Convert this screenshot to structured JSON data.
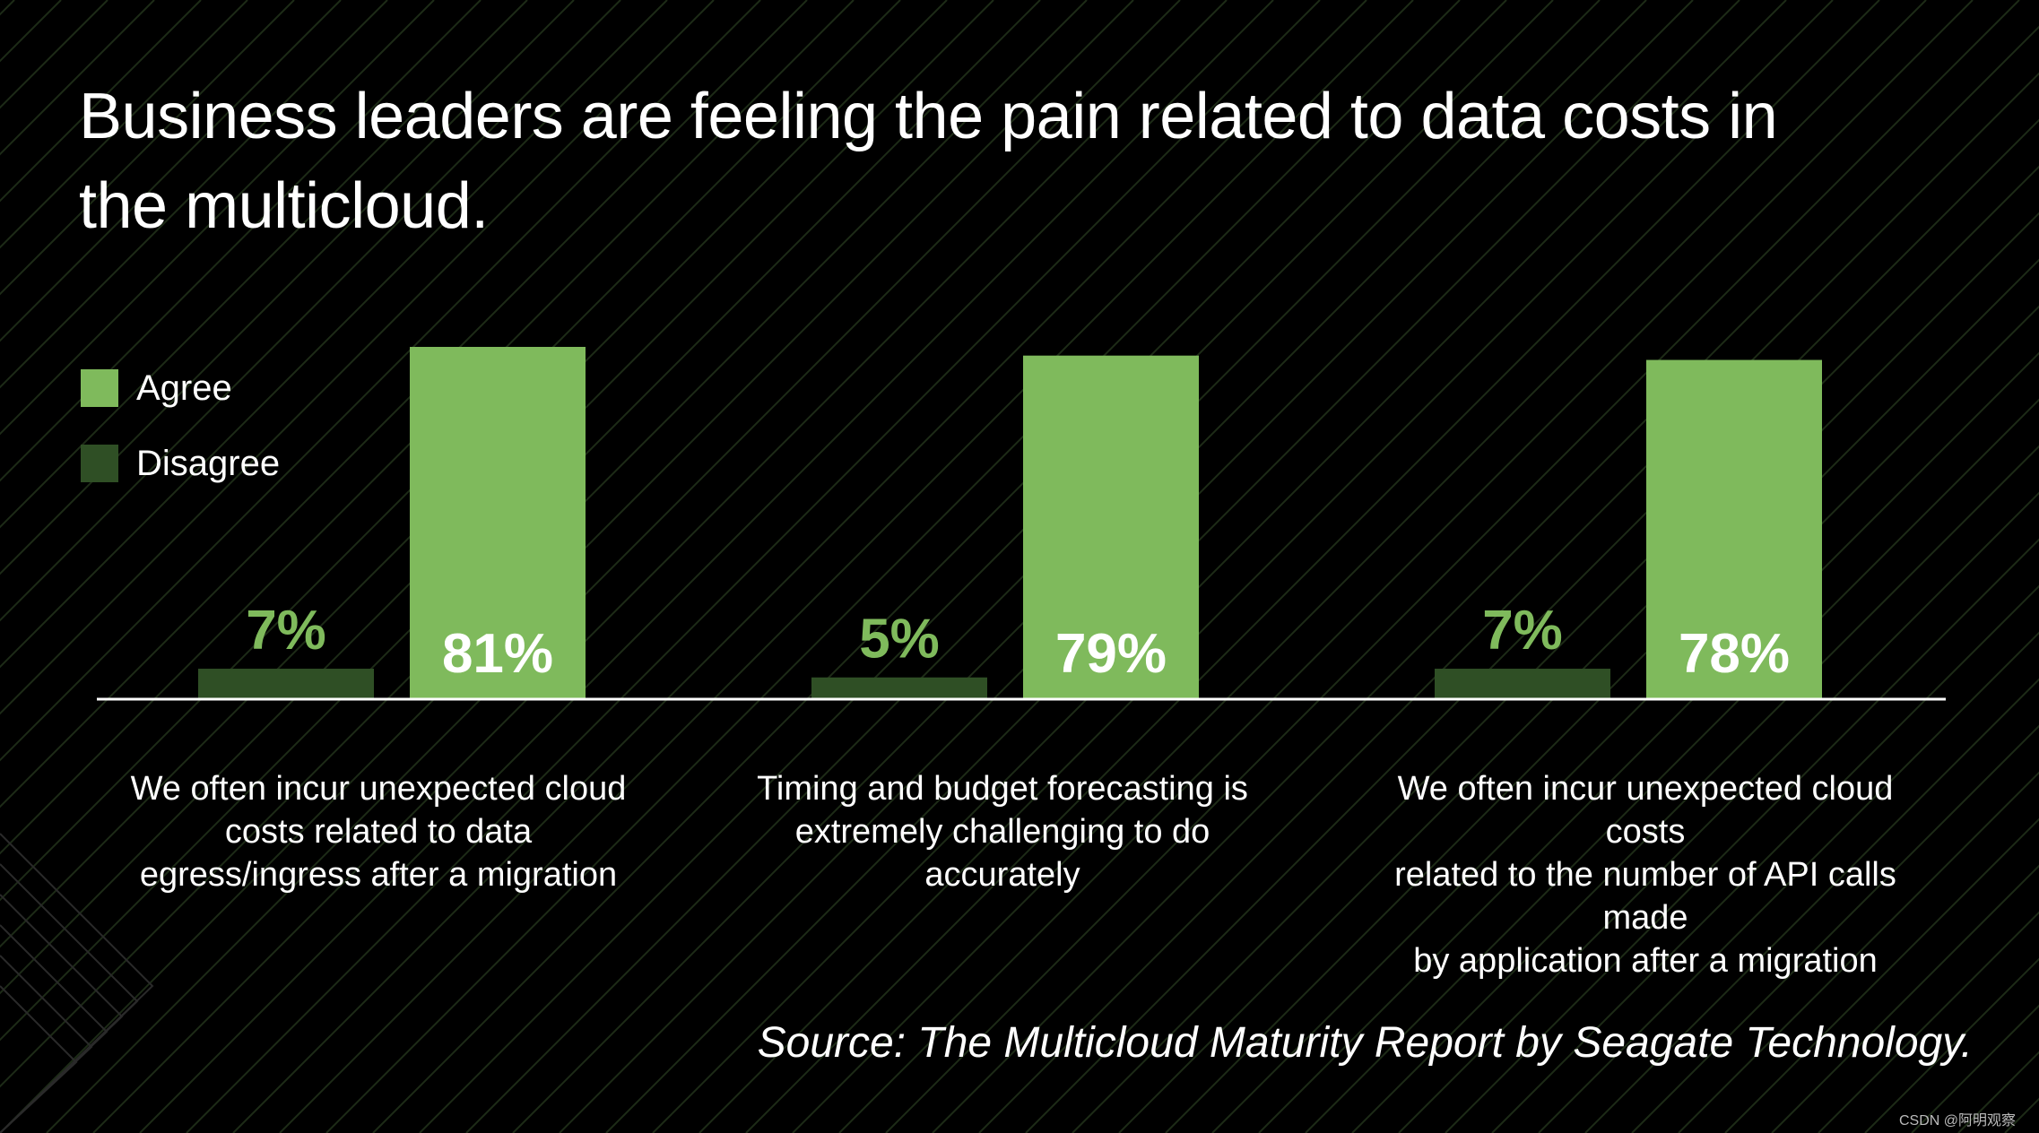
{
  "title": "Business leaders are feeling the pain related to data costs in the multicloud.",
  "source": "Source: The Multicloud Maturity Report by Seagate Technology.",
  "watermark": "CSDN @阿明观察",
  "colors": {
    "background": "#000000",
    "agree": "#7fba5c",
    "disagree": "#2f4f25",
    "stripes": "#1d2b17",
    "baseline": "#ffffff"
  },
  "chart_data": {
    "type": "bar",
    "categories": [
      "We often incur unexpected cloud costs related to data egress/ingress after a migration",
      "Timing and budget forecasting is extremely challenging to do accurately",
      "We often incur unexpected cloud costs related to the number of API calls made by application after a migration"
    ],
    "category_label_lines": [
      [
        "We often incur unexpected cloud",
        "costs related to data",
        "egress/ingress after a migration"
      ],
      [
        "Timing and budget forecasting is",
        "extremely challenging to do",
        "accurately"
      ],
      [
        "We often incur unexpected cloud costs",
        "related to the number of API calls made",
        "by application after a migration"
      ]
    ],
    "series": [
      {
        "name": "Disagree",
        "values": [
          7,
          5,
          7
        ],
        "labels": [
          "7%",
          "5%",
          "7%"
        ]
      },
      {
        "name": "Agree",
        "values": [
          81,
          79,
          78
        ],
        "labels": [
          "81%",
          "79%",
          "78%"
        ]
      }
    ],
    "legend": {
      "position": "left",
      "entries": [
        "Agree",
        "Disagree"
      ]
    },
    "ylim": [
      0,
      81
    ],
    "unit": "%",
    "grid": false
  }
}
